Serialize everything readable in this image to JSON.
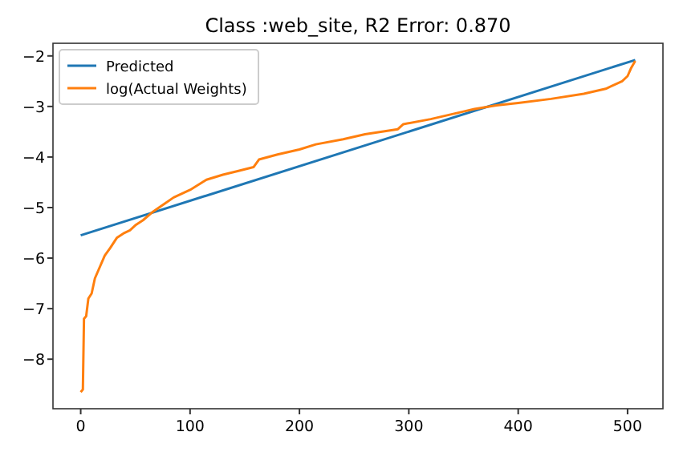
{
  "chart_data": {
    "type": "line",
    "title": "Class :web_site, R2 Error: 0.870",
    "xlim": [
      -25.35,
      532.35
    ],
    "ylim": [
      -8.98,
      -1.75
    ],
    "xticks": [
      0,
      100,
      200,
      300,
      400,
      500
    ],
    "yticks": [
      -8,
      -7,
      -6,
      -5,
      -4,
      -3,
      -2
    ],
    "grid": false,
    "legend": "top left",
    "series": [
      {
        "name": "Predicted",
        "color": "#1f77b4",
        "x": [
          0,
          507
        ],
        "values": [
          -5.55,
          -2.08
        ]
      },
      {
        "name": "log(Actual Weights)",
        "color": "#ff7f0e",
        "x": [
          0,
          2,
          3,
          5,
          7,
          10,
          13,
          18,
          22,
          27,
          33,
          40,
          45,
          50,
          57,
          65,
          75,
          85,
          100,
          115,
          130,
          145,
          158,
          163,
          180,
          200,
          215,
          240,
          260,
          290,
          295,
          320,
          350,
          360,
          380,
          400,
          430,
          460,
          480,
          495,
          500,
          503,
          507
        ],
        "values": [
          -8.65,
          -8.6,
          -7.2,
          -7.15,
          -6.8,
          -6.7,
          -6.4,
          -6.15,
          -5.95,
          -5.8,
          -5.6,
          -5.5,
          -5.45,
          -5.35,
          -5.25,
          -5.1,
          -4.95,
          -4.8,
          -4.65,
          -4.45,
          -4.35,
          -4.27,
          -4.2,
          -4.05,
          -3.95,
          -3.85,
          -3.75,
          -3.65,
          -3.55,
          -3.45,
          -3.35,
          -3.25,
          -3.1,
          -3.05,
          -2.98,
          -2.93,
          -2.85,
          -2.75,
          -2.65,
          -2.5,
          -2.4,
          -2.25,
          -2.1
        ]
      }
    ]
  }
}
